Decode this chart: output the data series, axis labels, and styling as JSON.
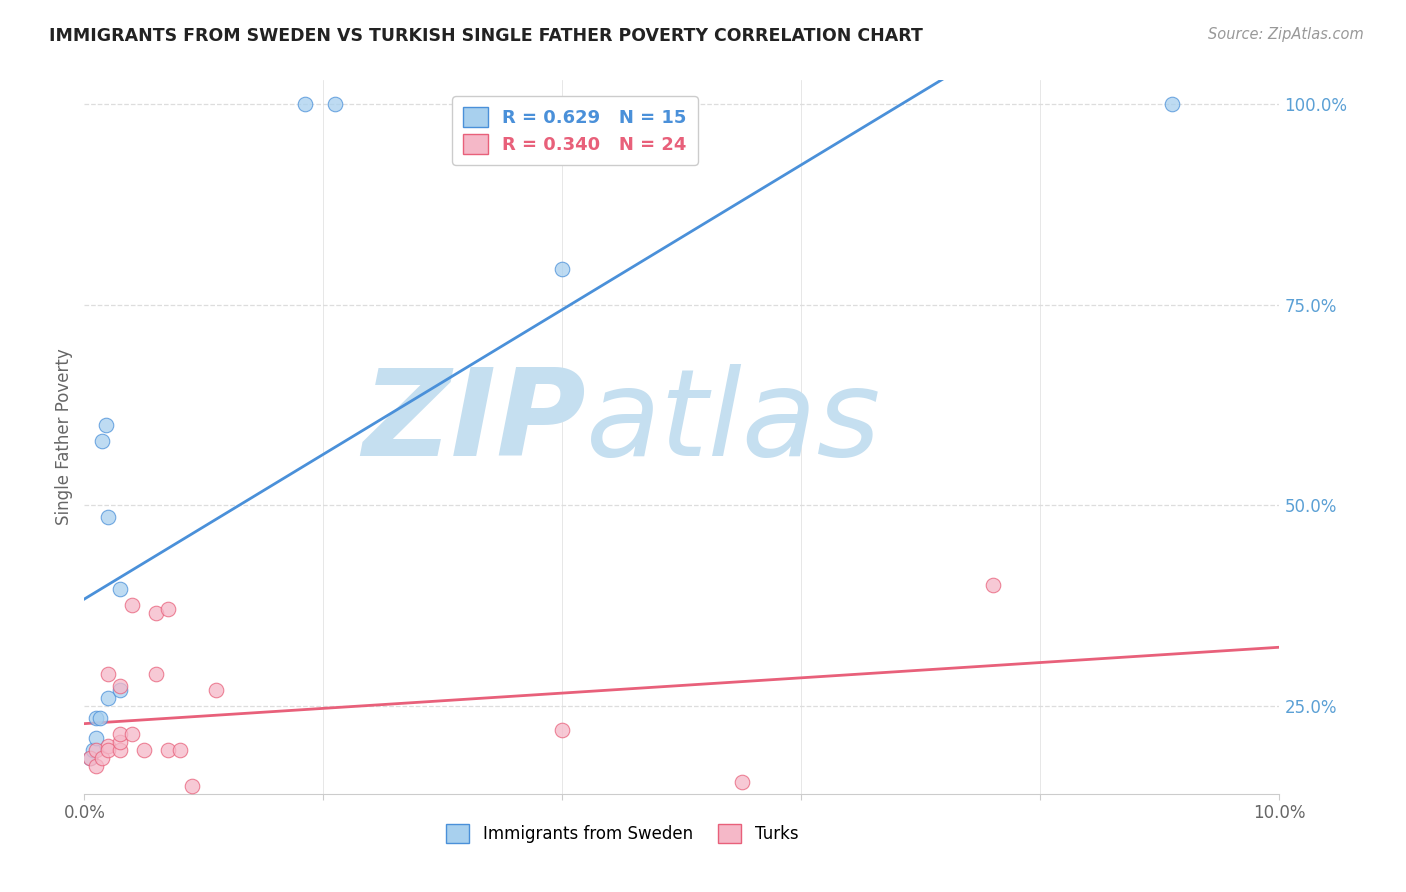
{
  "title": "IMMIGRANTS FROM SWEDEN VS TURKISH SINGLE FATHER POVERTY CORRELATION CHART",
  "source": "Source: ZipAtlas.com",
  "ylabel": "Single Father Poverty",
  "legend1_label": "Immigrants from Sweden",
  "legend2_label": "Turks",
  "legend1_r": "R = 0.629",
  "legend1_n": "N = 15",
  "legend2_r": "R = 0.340",
  "legend2_n": "N = 24",
  "color_blue": "#a8d0ee",
  "color_pink": "#f5b8c8",
  "color_line_blue": "#4a90d9",
  "color_line_pink": "#e8607a",
  "color_right_axis": "#5ba0d5",
  "watermark_zip": "ZIP",
  "watermark_atlas": "atlas",
  "watermark_color_zip": "#c5dff0",
  "watermark_color_atlas": "#c5dff0",
  "xlim": [
    0.0,
    0.1
  ],
  "ylim": [
    0.14,
    1.03
  ],
  "xtick_vals": [
    0.0,
    0.02,
    0.04,
    0.06,
    0.08,
    0.1
  ],
  "xtick_labels": [
    "0.0%",
    "",
    "",
    "",
    "",
    "10.0%"
  ],
  "ytick_right_vals": [
    0.25,
    0.5,
    0.75,
    1.0
  ],
  "ytick_right_labels": [
    "25.0%",
    "50.0%",
    "75.0%",
    "100.0%"
  ],
  "sweden_x": [
    0.0005,
    0.0007,
    0.001,
    0.001,
    0.0013,
    0.0015,
    0.0018,
    0.002,
    0.002,
    0.003,
    0.003,
    0.0185,
    0.021,
    0.04,
    0.091
  ],
  "sweden_y": [
    0.185,
    0.195,
    0.21,
    0.235,
    0.235,
    0.58,
    0.6,
    0.485,
    0.26,
    0.395,
    0.27,
    1.0,
    1.0,
    0.795,
    1.0
  ],
  "turks_x": [
    0.0005,
    0.001,
    0.001,
    0.0015,
    0.002,
    0.002,
    0.002,
    0.003,
    0.003,
    0.003,
    0.003,
    0.004,
    0.004,
    0.005,
    0.006,
    0.006,
    0.007,
    0.007,
    0.008,
    0.009,
    0.011,
    0.04,
    0.055,
    0.076
  ],
  "turks_y": [
    0.185,
    0.195,
    0.175,
    0.185,
    0.2,
    0.195,
    0.29,
    0.195,
    0.205,
    0.275,
    0.215,
    0.375,
    0.215,
    0.195,
    0.365,
    0.29,
    0.37,
    0.195,
    0.195,
    0.15,
    0.27,
    0.22,
    0.155,
    0.4
  ],
  "background_color": "#ffffff",
  "grid_color": "#dddddd",
  "spine_color": "#cccccc"
}
